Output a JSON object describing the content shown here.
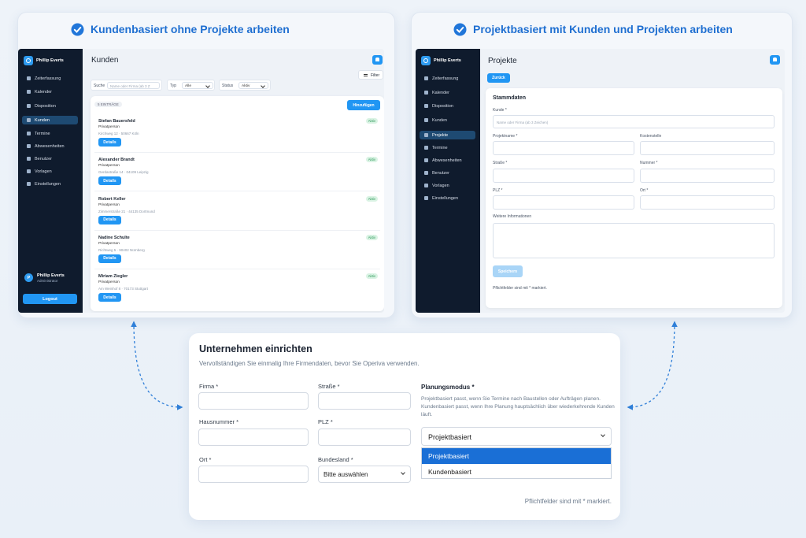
{
  "left_panel": {
    "heading": "Kundenbasiert ohne Projekte arbeiten",
    "app": {
      "brand": "Phillip Everts",
      "nav": [
        "Zeiterfassung",
        "Kalender",
        "Disposition",
        "Kunden",
        "Termine",
        "Abwesenheiten",
        "Benutzer",
        "Vorlagen",
        "Einstellungen"
      ],
      "avatar_initial": "P",
      "user_name": "Phillip Everts",
      "user_role": "Administrator",
      "logout": "Logout",
      "title": "Kunden",
      "filter": "Filter",
      "search_label": "Suche",
      "search_placeholder": "Name oder Firma (ab 3 Z",
      "type_label": "Typ",
      "type_value": "Alle",
      "status_label": "Status",
      "status_value": "Aktiv",
      "count": "5 EINTRÄGE",
      "add": "Hinzufügen",
      "customers": [
        {
          "name": "Stefan Bauersfeld",
          "type": "Privatperson",
          "address": "Kirchweg 12 · 50667 Köln",
          "status": "Aktiv",
          "action": "Details"
        },
        {
          "name": "Alexander Brandt",
          "type": "Privatperson",
          "address": "Gerdastraße 14 · 04109 Leipzig",
          "status": "Aktiv",
          "action": "Details"
        },
        {
          "name": "Robert Keller",
          "type": "Privatperson",
          "address": "Zimmerstraße 21 · 44135 Dortmund",
          "status": "Aktiv",
          "action": "Details"
        },
        {
          "name": "Nadine Schulte",
          "type": "Privatperson",
          "address": "Richtweg 5 · 90402 Nürnberg",
          "status": "Aktiv",
          "action": "Details"
        },
        {
          "name": "Miriam Ziegler",
          "type": "Privatperson",
          "address": "Am Weinhof 8 · 70173 Stuttgart",
          "status": "Aktiv",
          "action": "Details"
        }
      ]
    }
  },
  "right_panel": {
    "heading": "Projektbasiert mit Kunden und Projekten arbeiten",
    "app": {
      "brand": "Phillip Everts",
      "nav": [
        "Zeiterfassung",
        "Kalender",
        "Disposition",
        "Kunden",
        "Projekte",
        "Termine",
        "Abwesenheiten",
        "Benutzer",
        "Vorlagen",
        "Einstellungen"
      ],
      "title": "Projekte",
      "back": "Zurück",
      "section": "Stammdaten",
      "customer_label": "Kunde *",
      "customer_placeholder": "Name oder Firma (ab 3 Zeichen)",
      "project_label": "Projektname *",
      "cost_center_label": "Kostenstelle",
      "street_label": "Straße *",
      "number_label": "Nummer *",
      "zip_label": "PLZ *",
      "city_label": "Ort *",
      "info_label": "Weitere Informationen",
      "save": "Speichern",
      "note": "Pflichtfelder sind mit * markiert."
    }
  },
  "setup_form": {
    "title": "Unternehmen einrichten",
    "subtitle": "Vervollständigen Sie einmalig Ihre Firmendaten, bevor Sie Operiva verwenden.",
    "company_label": "Firma *",
    "street_label": "Straße *",
    "house_number_label": "Hausnummer *",
    "zip_label": "PLZ *",
    "city_label": "Ort *",
    "state_label": "Bundesland *",
    "state_placeholder": "Bitte auswählen",
    "mode_label": "Planungsmodus *",
    "mode_description": "Projektbasiert passt, wenn Sie Termine nach Baustellen oder Aufträgen planen. Kundenbasiert passt, wenn Ihre Planung hauptsächlich über wiederkehrende Kunden läuft.",
    "mode_value": "Projektbasiert",
    "mode_options": [
      "Projektbasiert",
      "Kundenbasiert"
    ],
    "note": "Pflichtfelder sind mit * markiert."
  }
}
